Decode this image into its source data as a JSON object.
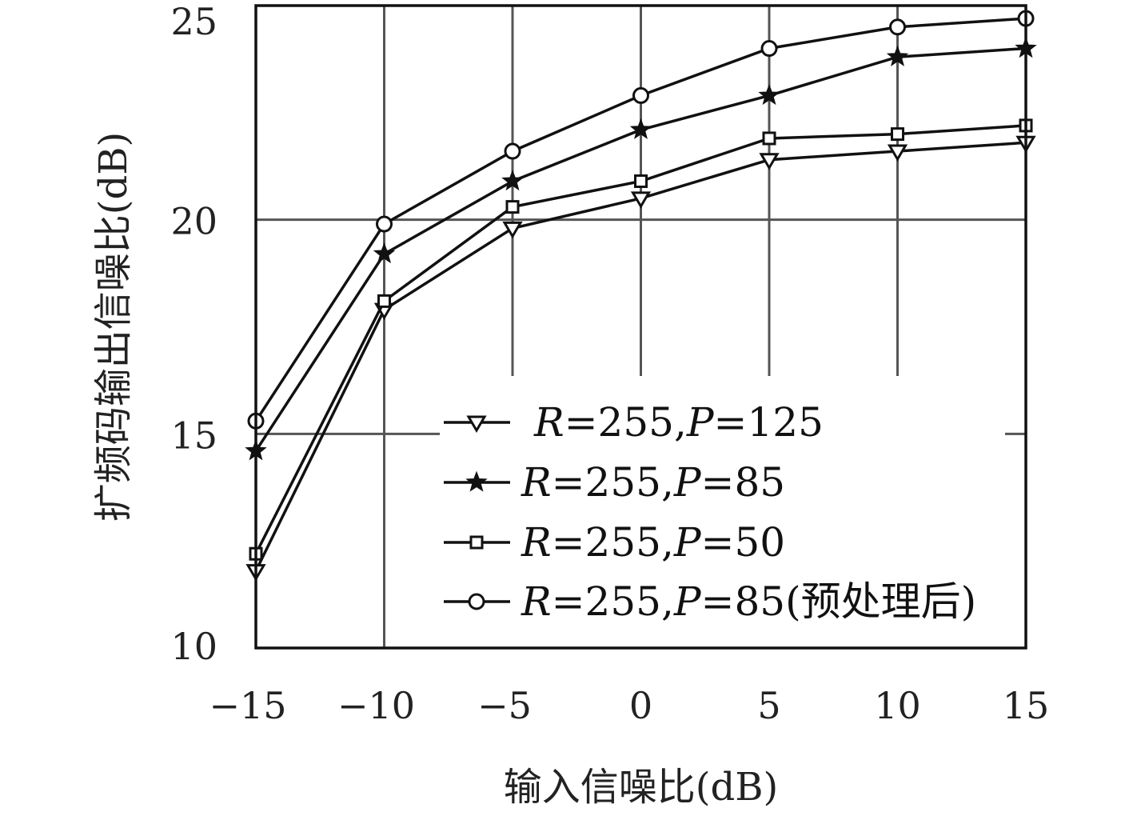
{
  "chart_data": {
    "type": "line",
    "xlabel": "输入信噪比(dB)",
    "ylabel": "扩频码输出信噪比(dB)",
    "xlim": [
      -15,
      15
    ],
    "ylim": [
      10,
      25
    ],
    "xticks": [
      -15,
      -10,
      -5,
      0,
      5,
      10,
      15
    ],
    "xtick_labels": [
      "−15",
      "−10",
      "−5",
      "0",
      "5",
      "10",
      "15"
    ],
    "yticks": [
      10,
      15,
      20,
      25
    ],
    "ytick_labels": [
      "10",
      "15",
      "20",
      "25"
    ],
    "grid": true,
    "legend_position": "lower-right",
    "x": [
      -15,
      -10,
      -5,
      0,
      5,
      10,
      15
    ],
    "series": [
      {
        "name": "R=255,P=125",
        "name_parts": {
          "r": "R",
          "rval": "=255,",
          "p": "P",
          "pval": "=125",
          "suffix": ""
        },
        "marker": "triangle-down",
        "values": [
          11.8,
          17.9,
          19.8,
          20.5,
          21.4,
          21.6,
          21.8
        ]
      },
      {
        "name": "R=255,P=85",
        "name_parts": {
          "r": "R",
          "rval": "=255,",
          "p": "P",
          "pval": "=85",
          "suffix": ""
        },
        "marker": "star",
        "values": [
          14.6,
          19.2,
          20.9,
          22.1,
          22.9,
          23.8,
          24.0
        ]
      },
      {
        "name": "R=255,P=50",
        "name_parts": {
          "r": "R",
          "rval": "=255,",
          "p": "P",
          "pval": "=50",
          "suffix": ""
        },
        "marker": "square",
        "values": [
          12.2,
          18.1,
          20.3,
          20.9,
          21.9,
          22.0,
          22.2
        ]
      },
      {
        "name": "R=255,P=85(预处理后)",
        "name_parts": {
          "r": "R",
          "rval": "=255,",
          "p": "P",
          "pval": "=85",
          "suffix": "(预处理后)"
        },
        "marker": "circle",
        "values": [
          15.3,
          19.9,
          21.6,
          22.9,
          24.0,
          24.5,
          24.7
        ]
      }
    ]
  }
}
